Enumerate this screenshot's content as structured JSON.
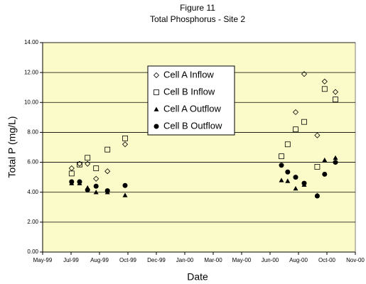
{
  "chart_data": {
    "type": "scatter",
    "title": "Figure 11",
    "subtitle": "Total Phosphorus - Site 2",
    "x_label": "Date",
    "y_label": "Total P (mg/L)",
    "x": [
      36351,
      36365,
      36379,
      36394,
      36414,
      36445,
      36720,
      36731,
      36745,
      36760,
      36783,
      36796,
      36815
    ],
    "series": [
      {
        "name": "Cell A Inflow",
        "color": "#000000",
        "marker": "diamond-open",
        "values": [
          5.6,
          5.9,
          5.9,
          4.9,
          5.4,
          7.2,
          null,
          null,
          9.35,
          11.9,
          7.8,
          11.4,
          10.7
        ]
      },
      {
        "name": "Cell B Inflow",
        "color": "#000000",
        "marker": "square-open",
        "values": [
          5.25,
          5.85,
          6.3,
          5.6,
          6.85,
          7.6,
          6.4,
          7.2,
          8.2,
          8.7,
          5.7,
          10.9,
          10.2
        ]
      },
      {
        "name": "Cell A Outflow",
        "color": "#000000",
        "marker": "triangle",
        "values": [
          4.6,
          4.6,
          4.3,
          4.0,
          4.0,
          3.8,
          4.8,
          4.75,
          4.25,
          4.5,
          3.8,
          6.15,
          6.3
        ]
      },
      {
        "name": "Cell B Outflow",
        "color": "#000000",
        "marker": "circle",
        "values": [
          4.7,
          4.7,
          4.15,
          4.4,
          4.1,
          4.45,
          5.8,
          5.35,
          5.0,
          4.6,
          3.75,
          5.2,
          6.0
        ]
      }
    ],
    "xlim": [
      36300,
      36850
    ],
    "xticks": [
      {
        "value": 36300,
        "label": "May-99"
      },
      {
        "value": 36350,
        "label": "Jul-99"
      },
      {
        "value": 36400,
        "label": "Aug-99"
      },
      {
        "value": 36450,
        "label": "Oct-99"
      },
      {
        "value": 36500,
        "label": "Dec-99"
      },
      {
        "value": 36550,
        "label": "Jan-00"
      },
      {
        "value": 36600,
        "label": "Mar-00"
      },
      {
        "value": 36650,
        "label": "May-00"
      },
      {
        "value": 36700,
        "label": "Jun-00"
      },
      {
        "value": 36750,
        "label": "Aug-00"
      },
      {
        "value": 36800,
        "label": "Oct-00"
      },
      {
        "value": 36850,
        "label": "Nov-00"
      }
    ],
    "ylim": [
      0,
      14
    ],
    "yticks": [
      {
        "value": 0,
        "label": "0.00"
      },
      {
        "value": 2,
        "label": "2.00"
      },
      {
        "value": 4,
        "label": "4.00"
      },
      {
        "value": 6,
        "label": "6.00"
      },
      {
        "value": 8,
        "label": "8.00"
      },
      {
        "value": 10,
        "label": "10.00"
      },
      {
        "value": 12,
        "label": "12.00"
      },
      {
        "value": 14,
        "label": "14.00"
      }
    ],
    "grid": true,
    "plot_background": "#fbfbc9"
  }
}
